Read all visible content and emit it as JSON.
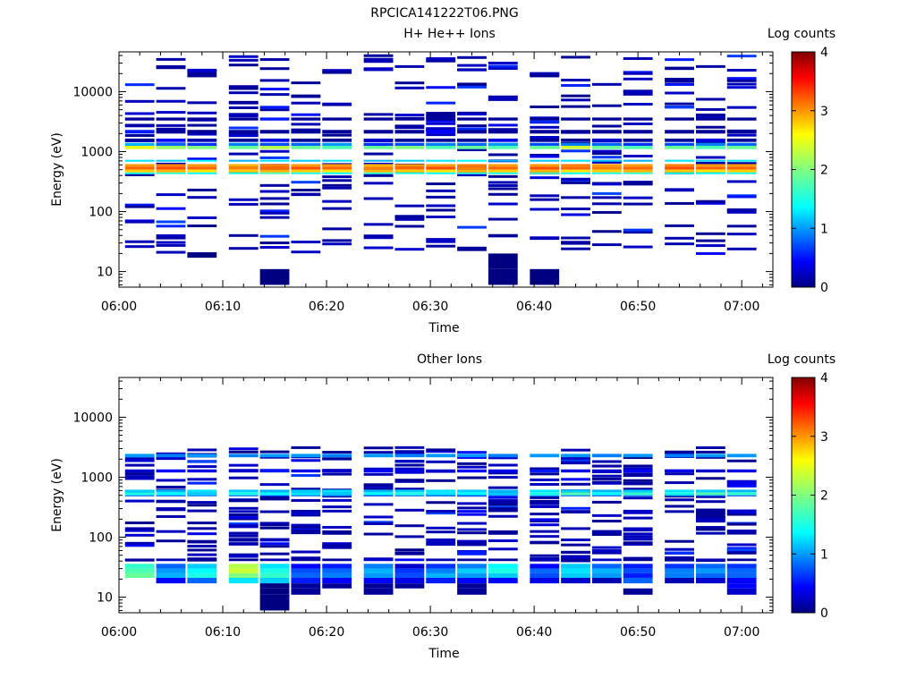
{
  "figure_title": "RPCICA141222T06.PNG",
  "chart_data": [
    {
      "type": "heatmap",
      "title": "H+ He++ Ions",
      "xlabel": "Time",
      "ylabel": "Energy (eV)",
      "colorbar_label": "Log counts",
      "log_y": true,
      "ylim": [
        5.5,
        46000
      ],
      "xlim": [
        "06:00",
        "07:03"
      ],
      "x_ticks": [
        "06:00",
        "06:10",
        "06:20",
        "06:30",
        "06:40",
        "06:50",
        "07:00"
      ],
      "y_ticks": [
        "10",
        "100",
        "1000",
        "10000"
      ],
      "colorbar_ticks": [
        "0",
        "1",
        "2",
        "3",
        "4"
      ],
      "colorbar_range": [
        0,
        4
      ],
      "time_bins": [
        "06:02",
        "06:05",
        "06:08",
        "06:12",
        "06:15",
        "06:18",
        "06:21",
        "06:25",
        "06:28",
        "06:31",
        "06:34",
        "06:37",
        "06:41",
        "06:44",
        "06:47",
        "06:50",
        "06:54",
        "06:57",
        "07:00"
      ],
      "grid": false,
      "layers": [
        {
          "energy": [
            560,
            620
          ],
          "values": [
            2.9,
            3.0,
            2.9,
            2.8,
            3.0,
            2.9,
            2.9,
            2.8,
            2.9,
            2.9,
            3.0,
            2.9,
            2.9,
            3.0,
            2.9,
            2.9,
            3.0,
            2.9,
            2.9
          ]
        },
        {
          "energy": [
            500,
            560
          ],
          "values": [
            3.1,
            3.2,
            3.1,
            3.0,
            3.1,
            3.2,
            3.1,
            3.0,
            3.1,
            3.2,
            3.0,
            3.1,
            3.2,
            3.1,
            3.0,
            3.1,
            3.2,
            3.1,
            3.1
          ]
        },
        {
          "energy": [
            450,
            500
          ],
          "values": [
            2.7,
            2.8,
            2.6,
            2.7,
            2.8,
            2.7,
            2.6,
            2.8,
            2.7,
            2.6,
            2.8,
            2.7,
            2.8,
            2.6,
            2.7,
            2.8,
            2.7,
            2.6,
            2.7
          ]
        },
        {
          "energy": [
            420,
            450
          ],
          "values": [
            1.6,
            1.7,
            1.5,
            1.6,
            1.8,
            1.6,
            1.5,
            1.7,
            1.6,
            1.5,
            1.7,
            1.6,
            1.8,
            1.5,
            1.6,
            1.7,
            1.6,
            1.5,
            1.6
          ]
        },
        {
          "energy": [
            680,
            730
          ],
          "values": [
            1.4,
            1.3,
            1.5,
            1.2,
            1.4,
            1.3,
            1.4,
            1.2,
            1.3,
            1.4,
            1.5,
            1.2,
            1.3,
            1.4,
            1.3,
            1.2,
            1.4,
            1.3,
            1.4
          ]
        },
        {
          "energy": [
            1100,
            1250
          ],
          "values": [
            2.4,
            2.1,
            2.0,
            1.9,
            2.2,
            1.9,
            1.8,
            1.9,
            2.0,
            1.8,
            1.9,
            1.8,
            1.9,
            2.3,
            1.9,
            1.8,
            1.9,
            1.8,
            1.9
          ]
        },
        {
          "energy": [
            1250,
            1400
          ],
          "values": [
            1.2,
            0.9,
            0.7,
            1.0,
            0.8,
            0.9,
            1.1,
            0.7,
            0.8,
            1.0,
            0.9,
            1.1,
            0.8,
            1.0,
            0.9,
            0.7,
            0.8,
            1.0,
            0.9
          ]
        },
        {
          "energy": [
            1450,
            1650
          ],
          "values": [
            0.1,
            0.5,
            0.2,
            0.1,
            0.4,
            0.1,
            0.1,
            0.3,
            0.1,
            0.1,
            0.1,
            0.4,
            0.1,
            0.1,
            0.3,
            0.1,
            0.1,
            0.4,
            0.1
          ]
        },
        {
          "energy": [
            2000,
            2300
          ],
          "values": [
            0.6,
            0.1,
            0.1,
            0.1,
            0.1,
            0.1,
            0.1,
            0.1,
            0.1,
            0.5,
            0.1,
            0.1,
            0.1,
            0.1,
            0.1,
            0.1,
            0.1,
            0.1,
            0.1
          ]
        },
        {
          "energy": [
            3300,
            3700
          ],
          "values": [
            0.1,
            0.1,
            0.1,
            0.1,
            0.6,
            0.1,
            0.1,
            0.1,
            0.1,
            0.1,
            0.1,
            0.1,
            0.1,
            0.1,
            0.1,
            0.1,
            0.1,
            0.1,
            0.1
          ]
        },
        {
          "energy": [
            3700,
            4600
          ],
          "values": [
            null,
            null,
            null,
            null,
            null,
            null,
            null,
            null,
            null,
            0.1,
            null,
            null,
            null,
            null,
            null,
            null,
            null,
            null,
            null
          ]
        },
        {
          "energy": [
            23000,
            26000
          ],
          "values": [
            null,
            null,
            null,
            null,
            null,
            null,
            null,
            null,
            null,
            null,
            null,
            null,
            null,
            null,
            null,
            null,
            0.1,
            null,
            null
          ]
        },
        {
          "energy": [
            14000,
            17000
          ],
          "values": [
            null,
            null,
            null,
            null,
            null,
            null,
            null,
            null,
            null,
            null,
            null,
            null,
            null,
            null,
            null,
            null,
            0.1,
            null,
            null
          ]
        },
        {
          "energy": [
            22,
            26
          ],
          "values": [
            null,
            null,
            null,
            null,
            null,
            null,
            null,
            null,
            null,
            null,
            0.1,
            null,
            null,
            null,
            null,
            null,
            null,
            null,
            null
          ]
        },
        {
          "energy": [
            11,
            20
          ],
          "values": [
            null,
            null,
            null,
            null,
            null,
            null,
            null,
            null,
            null,
            null,
            null,
            0.0,
            null,
            null,
            null,
            null,
            null,
            null,
            null
          ]
        },
        {
          "energy": [
            6,
            11
          ],
          "values": [
            null,
            null,
            null,
            null,
            0.0,
            null,
            null,
            null,
            null,
            null,
            null,
            null,
            0.0,
            null,
            null,
            null,
            null,
            null,
            null
          ]
        },
        {
          "energy": [
            6,
            11
          ],
          "values": [
            null,
            null,
            null,
            null,
            null,
            null,
            null,
            null,
            null,
            null,
            null,
            0.0,
            null,
            null,
            null,
            null,
            null,
            null,
            null
          ]
        },
        {
          "energy": [
            17,
            21
          ],
          "values": [
            null,
            null,
            0.0,
            null,
            null,
            null,
            null,
            null,
            null,
            null,
            null,
            null,
            null,
            null,
            null,
            null,
            null,
            null,
            null
          ]
        }
      ],
      "sparse_noise_seed": 1
    },
    {
      "type": "heatmap",
      "title": "Other Ions",
      "xlabel": "Time",
      "ylabel": "Energy (eV)",
      "colorbar_label": "Log counts",
      "log_y": true,
      "ylim": [
        5.5,
        46000
      ],
      "xlim": [
        "06:00",
        "07:03"
      ],
      "x_ticks": [
        "06:00",
        "06:10",
        "06:20",
        "06:30",
        "06:40",
        "06:50",
        "07:00"
      ],
      "y_ticks": [
        "10",
        "100",
        "1000",
        "10000"
      ],
      "colorbar_ticks": [
        "0",
        "1",
        "2",
        "3",
        "4"
      ],
      "colorbar_range": [
        0,
        4
      ],
      "time_bins": [
        "06:02",
        "06:05",
        "06:08",
        "06:12",
        "06:15",
        "06:18",
        "06:21",
        "06:25",
        "06:28",
        "06:31",
        "06:34",
        "06:37",
        "06:41",
        "06:44",
        "06:47",
        "06:50",
        "06:54",
        "06:57",
        "07:00"
      ],
      "grid": false,
      "layers": [
        {
          "energy": [
            2150,
            2450
          ],
          "values": [
            1.1,
            1.0,
            1.1,
            1.0,
            1.1,
            1.1,
            1.0,
            1.1,
            1.0,
            1.1,
            1.1,
            1.0,
            1.1,
            1.1,
            1.0,
            1.1,
            1.0,
            1.1,
            1.1
          ]
        },
        {
          "energy": [
            1200,
            1350
          ],
          "values": [
            0.3,
            0.5,
            0.4,
            0.3,
            0.6,
            0.4,
            0.3,
            0.5,
            0.4,
            0.3,
            0.5,
            0.4,
            0.6,
            0.4,
            0.3,
            0.5,
            0.4,
            0.3,
            0.4
          ]
        },
        {
          "energy": [
            560,
            620
          ],
          "values": [
            1.3,
            1.2,
            1.4,
            1.3,
            1.2,
            1.3,
            1.4,
            1.2,
            1.3,
            1.4,
            1.3,
            1.2,
            1.4,
            1.3,
            1.2,
            1.3,
            1.4,
            1.3,
            1.2
          ]
        },
        {
          "energy": [
            500,
            560
          ],
          "values": [
            1.6,
            1.5,
            1.3,
            1.6,
            1.5,
            1.4,
            1.3,
            1.5,
            1.6,
            1.4,
            1.5,
            1.3,
            1.6,
            1.8,
            1.5,
            1.7,
            1.6,
            1.8,
            1.7
          ]
        },
        {
          "energy": [
            480,
            500
          ],
          "values": [
            0.9,
            0.8,
            1.0,
            0.9,
            0.8,
            0.9,
            1.0,
            0.8,
            0.9,
            1.0,
            0.9,
            0.8,
            1.0,
            0.9,
            0.8,
            0.9,
            1.0,
            0.9,
            0.8
          ]
        },
        {
          "energy": [
            30,
            36
          ],
          "values": [
            1.7,
            0.9,
            1.3,
            2.2,
            1.4,
            0.5,
            0.6,
            1.0,
            0.3,
            0.7,
            1.0,
            1.5,
            0.5,
            1.3,
            0.9,
            0.6,
            0.7,
            0.9,
            0.7
          ]
        },
        {
          "energy": [
            25,
            30
          ],
          "values": [
            1.8,
            1.1,
            1.5,
            2.3,
            1.6,
            0.8,
            0.9,
            1.2,
            0.7,
            1.0,
            1.3,
            1.6,
            0.9,
            1.4,
            1.2,
            0.8,
            1.0,
            1.1,
            0.9
          ]
        },
        {
          "energy": [
            21,
            25
          ],
          "values": [
            1.9,
            1.2,
            1.6,
            2.0,
            1.7,
            0.9,
            1.0,
            1.1,
            0.8,
            1.2,
            1.1,
            1.3,
            0.8,
            1.3,
            1.1,
            0.6,
            1.0,
            0.9,
            0.9
          ]
        },
        {
          "energy": [
            17,
            21
          ],
          "values": [
            null,
            0.5,
            0.9,
            1.4,
            1.3,
            0.6,
            0.5,
            0.5,
            0.4,
            0.6,
            0.5,
            0.5,
            0.4,
            0.3,
            0.2,
            0.9,
            0.2,
            0.3,
            0.5
          ]
        },
        {
          "energy": [
            14,
            17
          ],
          "values": [
            null,
            null,
            null,
            null,
            0.0,
            0.1,
            0.1,
            0.1,
            0.1,
            null,
            0.1,
            null,
            null,
            null,
            null,
            null,
            null,
            null,
            0.5
          ]
        },
        {
          "energy": [
            11,
            14
          ],
          "values": [
            null,
            null,
            null,
            null,
            0.0,
            0.1,
            null,
            0.1,
            null,
            null,
            0.1,
            null,
            null,
            null,
            null,
            0.1,
            null,
            null,
            0.3
          ]
        },
        {
          "energy": [
            6,
            11
          ],
          "values": [
            null,
            null,
            null,
            null,
            0.0,
            null,
            null,
            null,
            null,
            null,
            null,
            null,
            null,
            null,
            null,
            null,
            null,
            null,
            null
          ]
        },
        {
          "energy": [
            40,
            44
          ],
          "values": [
            0.1,
            0.2,
            0.1,
            0.1,
            0.2,
            0.1,
            0.1,
            0.3,
            0.5,
            0.2,
            0.1,
            0.1,
            0.2,
            0.1,
            0.3,
            0.1,
            0.1,
            0.2,
            0.1
          ]
        },
        {
          "energy": [
            50,
            60
          ],
          "values": [
            null,
            null,
            null,
            null,
            null,
            null,
            null,
            null,
            null,
            null,
            0.6,
            null,
            null,
            null,
            null,
            null,
            null,
            null,
            null
          ]
        },
        {
          "energy": [
            110,
            130
          ],
          "values": [
            null,
            null,
            null,
            null,
            null,
            null,
            0.1,
            null,
            null,
            null,
            null,
            0.1,
            null,
            null,
            null,
            null,
            null,
            null,
            null
          ]
        },
        {
          "energy": [
            210,
            300
          ],
          "values": [
            null,
            null,
            null,
            null,
            null,
            null,
            null,
            null,
            null,
            null,
            null,
            null,
            null,
            null,
            null,
            null,
            null,
            0.1,
            null
          ]
        }
      ],
      "sparse_noise_seed": 2
    }
  ]
}
